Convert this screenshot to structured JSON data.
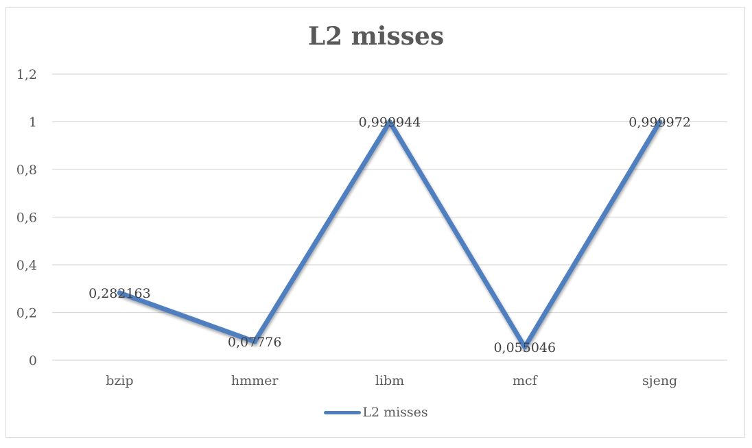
{
  "chart_data": {
    "type": "line",
    "title": "L2 misses",
    "categories": [
      "bzip",
      "hmmer",
      "libm",
      "mcf",
      "sjeng"
    ],
    "series": [
      {
        "name": "L2 misses",
        "values": [
          0.282163,
          0.07776,
          0.999944,
          0.055046,
          0.999972
        ],
        "data_labels": [
          "0,282163",
          "0,07776",
          "0,999944",
          "0,055046",
          "0,999972"
        ]
      }
    ],
    "ylim": [
      0,
      1.2
    ],
    "yticks": [
      0,
      0.2,
      0.4,
      0.6,
      0.8,
      1,
      1.2
    ],
    "ytick_labels": [
      "0",
      "0,2",
      "0,4",
      "0,6",
      "0,8",
      "1",
      "1,2"
    ],
    "grid": true,
    "legend_position": "bottom",
    "colors": {
      "series": "#4f7fbf",
      "grid": "#d9d9d9",
      "text": "#595959"
    }
  }
}
